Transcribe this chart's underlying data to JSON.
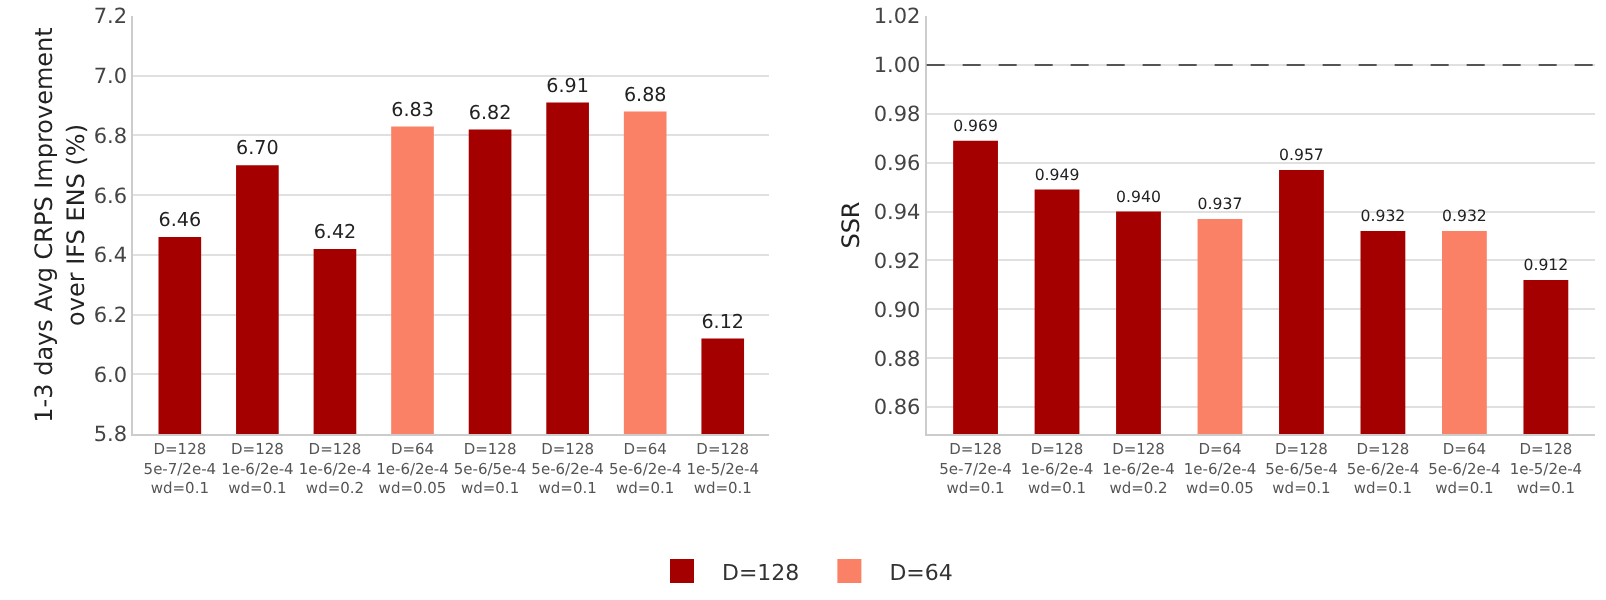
{
  "chart_data": [
    {
      "type": "bar",
      "ylabel": "1-3 days Avg CRPS Improvement\nover IFS ENS (%)",
      "categories": [
        "D=128\n5e-7/2e-4\nwd=0.1",
        "D=128\n1e-6/2e-4\nwd=0.1",
        "D=128\n1e-6/2e-4\nwd=0.2",
        "D=64\n1e-6/2e-4\nwd=0.05",
        "D=128\n5e-6/5e-4\nwd=0.1",
        "D=128\n5e-6/2e-4\nwd=0.1",
        "D=64\n5e-6/2e-4\nwd=0.1",
        "D=128\n1e-5/2e-4\nwd=0.1"
      ],
      "series": [
        {
          "name": "D=128",
          "color": "#a50000",
          "values": [
            6.46,
            6.7,
            6.42,
            null,
            6.82,
            6.91,
            null,
            6.12
          ],
          "value_labels": [
            "6.46",
            "6.70",
            "6.42",
            null,
            "6.82",
            "6.91",
            null,
            "6.12"
          ]
        },
        {
          "name": "D=64",
          "color": "#fa8066",
          "values": [
            null,
            null,
            null,
            6.83,
            null,
            null,
            6.88,
            null
          ],
          "value_labels": [
            null,
            null,
            null,
            "6.83",
            null,
            null,
            "6.88",
            null
          ]
        }
      ],
      "ylim": [
        5.8,
        7.2
      ],
      "yticks": [
        5.8,
        {
          "value": 6,
          "label": "6.0"
        },
        6.2,
        6.4,
        6.6,
        6.8,
        {
          "value": 7,
          "label": "7.0"
        },
        7.2
      ],
      "grid": "y",
      "legend": "bottom"
    },
    {
      "type": "bar",
      "ylabel": "SSR",
      "categories": [
        "D=128\n5e-7/2e-4\nwd=0.1",
        "D=128\n1e-6/2e-4\nwd=0.1",
        "D=128\n1e-6/2e-4\nwd=0.2",
        "D=64\n1e-6/2e-4\nwd=0.05",
        "D=128\n5e-6/5e-4\nwd=0.1",
        "D=128\n5e-6/2e-4\nwd=0.1",
        "D=64\n5e-6/2e-4\nwd=0.1",
        "D=128\n1e-5/2e-4\nwd=0.1"
      ],
      "series": [
        {
          "name": "D=128",
          "color": "#a50000",
          "values": [
            0.969,
            0.949,
            0.94,
            null,
            0.957,
            0.932,
            null,
            0.912
          ],
          "value_labels": [
            "0.969",
            "0.949",
            "0.940",
            null,
            "0.957",
            "0.932",
            null,
            "0.912"
          ]
        },
        {
          "name": "D=64",
          "color": "#fa8066",
          "values": [
            null,
            null,
            null,
            0.937,
            null,
            null,
            0.932,
            null
          ],
          "value_labels": [
            null,
            null,
            null,
            "0.937",
            null,
            null,
            "0.932",
            null
          ]
        }
      ],
      "ylim": [
        0.849,
        1.02
      ],
      "yticks": [
        0.86,
        0.88,
        {
          "value": 0.9,
          "label": "0.90"
        },
        0.92,
        0.94,
        0.96,
        0.98,
        {
          "value": 1,
          "label": "1.00"
        },
        1.02
      ],
      "grid": "y",
      "legend": "bottom",
      "ref_lines": [
        {
          "axis": "y",
          "value": 1,
          "color": "#555555",
          "line_style": "dashed"
        }
      ]
    }
  ]
}
